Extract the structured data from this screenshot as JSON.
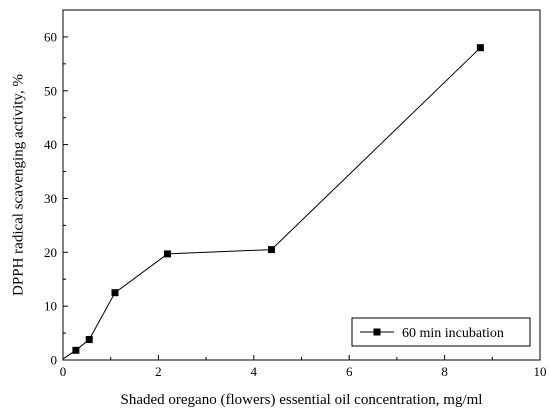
{
  "chart_data": {
    "type": "line",
    "xlabel": "Shaded oregano (flowers) essential oil concentration, mg/ml",
    "ylabel": "DPPH radical scavenging activity, %",
    "xlim": [
      0,
      10
    ],
    "ylim": [
      0,
      65
    ],
    "xticks": [
      0,
      2,
      4,
      6,
      8,
      10
    ],
    "yticks": [
      0,
      10,
      20,
      30,
      40,
      50,
      60
    ],
    "grid": false,
    "legend_position": "bottom-right",
    "series": [
      {
        "name": "60 min incubation",
        "marker": "square",
        "color": "#000000",
        "x": [
          0,
          0.27,
          0.55,
          1.09,
          2.19,
          4.37,
          8.75
        ],
        "y": [
          0.2,
          1.8,
          3.8,
          12.5,
          19.7,
          20.5,
          58.0
        ]
      }
    ]
  }
}
